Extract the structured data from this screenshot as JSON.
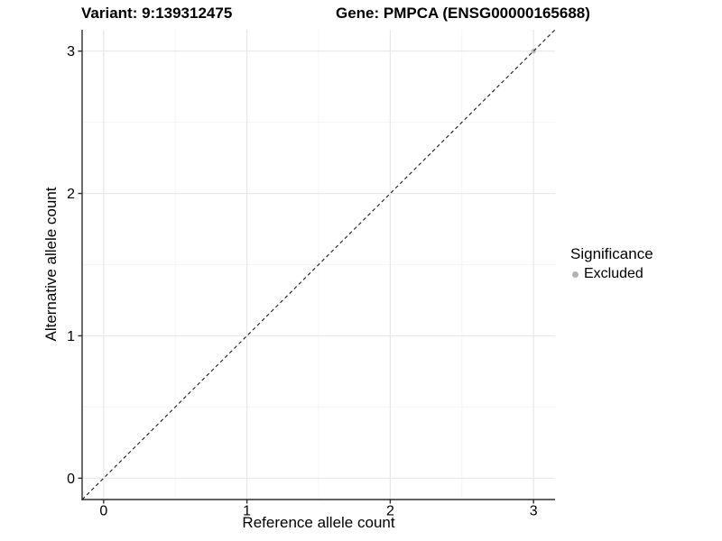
{
  "chart_data": {
    "type": "scatter",
    "title_left": "Variant: 9:139312475",
    "title_right": "Gene: PMPCA (ENSG00000165688)",
    "xlabel": "Reference allele count",
    "ylabel": "Alternative allele count",
    "xlim": [
      -0.15,
      3.15
    ],
    "ylim": [
      -0.15,
      3.15
    ],
    "x_ticks": [
      0,
      1,
      2,
      3
    ],
    "y_ticks": [
      0,
      1,
      2,
      3
    ],
    "grid": "major+minor",
    "legend_position": "right",
    "reference_line": {
      "type": "identity",
      "slope": 1,
      "intercept": 0,
      "style": "dashed",
      "color": "#1a1a1a"
    },
    "series": [
      {
        "name": "Excluded",
        "color": "#bdbdbd",
        "points": [
          {
            "x": 3,
            "y": 3
          }
        ]
      }
    ],
    "legend": {
      "title": "Significance",
      "items": [
        {
          "label": "Excluded",
          "color": "#b3b3b3",
          "marker": "circle"
        }
      ]
    },
    "colors": {
      "grid_major": "#e8e8e8",
      "grid_minor": "#f4f4f4",
      "axis": "#2e2e2e",
      "tick_label": "#000000"
    }
  }
}
